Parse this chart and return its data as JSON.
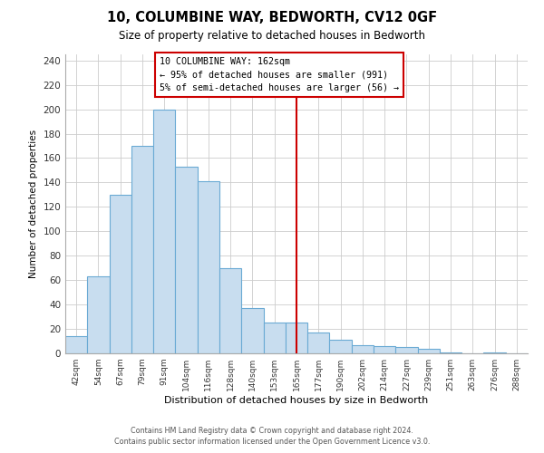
{
  "title": "10, COLUMBINE WAY, BEDWORTH, CV12 0GF",
  "subtitle": "Size of property relative to detached houses in Bedworth",
  "xlabel": "Distribution of detached houses by size in Bedworth",
  "ylabel": "Number of detached properties",
  "bar_labels": [
    "42sqm",
    "54sqm",
    "67sqm",
    "79sqm",
    "91sqm",
    "104sqm",
    "116sqm",
    "128sqm",
    "140sqm",
    "153sqm",
    "165sqm",
    "177sqm",
    "190sqm",
    "202sqm",
    "214sqm",
    "227sqm",
    "239sqm",
    "251sqm",
    "263sqm",
    "276sqm",
    "288sqm"
  ],
  "bar_values": [
    14,
    63,
    130,
    170,
    200,
    153,
    141,
    70,
    37,
    25,
    25,
    17,
    11,
    7,
    6,
    5,
    4,
    1,
    0,
    1,
    0
  ],
  "bar_color": "#c8ddef",
  "bar_edge_color": "#6aaad4",
  "vline_color": "#cc0000",
  "vline_x": 10,
  "annotation_title": "10 COLUMBINE WAY: 162sqm",
  "annotation_line1": "← 95% of detached houses are smaller (991)",
  "annotation_line2": "5% of semi-detached houses are larger (56) →",
  "annotation_box_color": "#ffffff",
  "annotation_box_edge": "#cc0000",
  "ylim": [
    0,
    245
  ],
  "yticks": [
    0,
    20,
    40,
    60,
    80,
    100,
    120,
    140,
    160,
    180,
    200,
    220,
    240
  ],
  "footer_line1": "Contains HM Land Registry data © Crown copyright and database right 2024.",
  "footer_line2": "Contains public sector information licensed under the Open Government Licence v3.0.",
  "bg_color": "#ffffff",
  "grid_color": "#cccccc"
}
